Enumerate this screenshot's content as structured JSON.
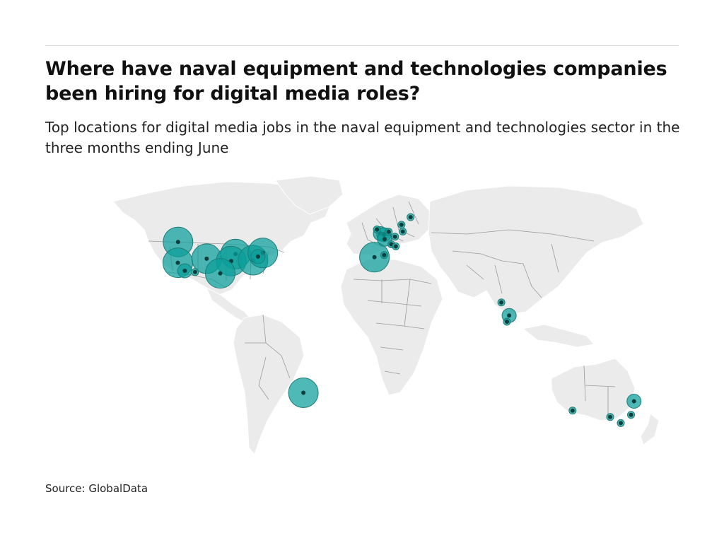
{
  "header": {
    "title": "Where have naval equipment and technologies companies been hiring for digital media roles?",
    "subtitle": "Top locations for digital media jobs in the naval equipment and technologies sector in the three months ending June"
  },
  "footer": {
    "source": "Source: GlobalData"
  },
  "map": {
    "projection": "world",
    "bubble_color": "#0a9e9a",
    "land_color": "#ebebeb",
    "locations": [
      {
        "lat": 47.6,
        "lon": -122.3,
        "size": 3
      },
      {
        "lat": 37.8,
        "lon": -122.4,
        "size": 3
      },
      {
        "lat": 34.0,
        "lon": -118.2,
        "size": 2
      },
      {
        "lat": 33.4,
        "lon": -112.0,
        "size": 1
      },
      {
        "lat": 39.7,
        "lon": -105.0,
        "size": 3
      },
      {
        "lat": 41.9,
        "lon": -87.6,
        "size": 3
      },
      {
        "lat": 38.6,
        "lon": -90.2,
        "size": 3
      },
      {
        "lat": 32.8,
        "lon": -96.8,
        "size": 3
      },
      {
        "lat": 39.0,
        "lon": -77.0,
        "size": 3
      },
      {
        "lat": 42.4,
        "lon": -71.1,
        "size": 3
      },
      {
        "lat": 40.7,
        "lon": -74.0,
        "size": 2
      },
      {
        "lat": -23.5,
        "lon": -46.6,
        "size": 3
      },
      {
        "lat": 53.5,
        "lon": -2.2,
        "size": 1
      },
      {
        "lat": 51.5,
        "lon": -0.1,
        "size": 2
      },
      {
        "lat": 51.0,
        "lon": 2.0,
        "size": 2
      },
      {
        "lat": 52.4,
        "lon": 4.9,
        "size": 1
      },
      {
        "lat": 50.1,
        "lon": 8.7,
        "size": 1
      },
      {
        "lat": 48.9,
        "lon": 2.4,
        "size": 2
      },
      {
        "lat": 46.5,
        "lon": 6.5,
        "size": 1
      },
      {
        "lat": 45.5,
        "lon": 9.2,
        "size": 1
      },
      {
        "lat": 41.4,
        "lon": 2.2,
        "size": 1
      },
      {
        "lat": 40.4,
        "lon": -3.7,
        "size": 3
      },
      {
        "lat": 55.7,
        "lon": 12.6,
        "size": 1
      },
      {
        "lat": 52.5,
        "lon": 13.4,
        "size": 1
      },
      {
        "lat": 59.3,
        "lon": 18.1,
        "size": 1
      },
      {
        "lat": 19.1,
        "lon": 72.9,
        "size": 1
      },
      {
        "lat": 12.9,
        "lon": 77.6,
        "size": 2
      },
      {
        "lat": 10.0,
        "lon": 76.3,
        "size": 1
      },
      {
        "lat": -27.5,
        "lon": 153.0,
        "size": 2
      },
      {
        "lat": -33.9,
        "lon": 151.2,
        "size": 1
      },
      {
        "lat": -37.8,
        "lon": 145.0,
        "size": 1
      },
      {
        "lat": -34.9,
        "lon": 138.6,
        "size": 1
      },
      {
        "lat": -31.9,
        "lon": 115.9,
        "size": 1
      }
    ]
  }
}
